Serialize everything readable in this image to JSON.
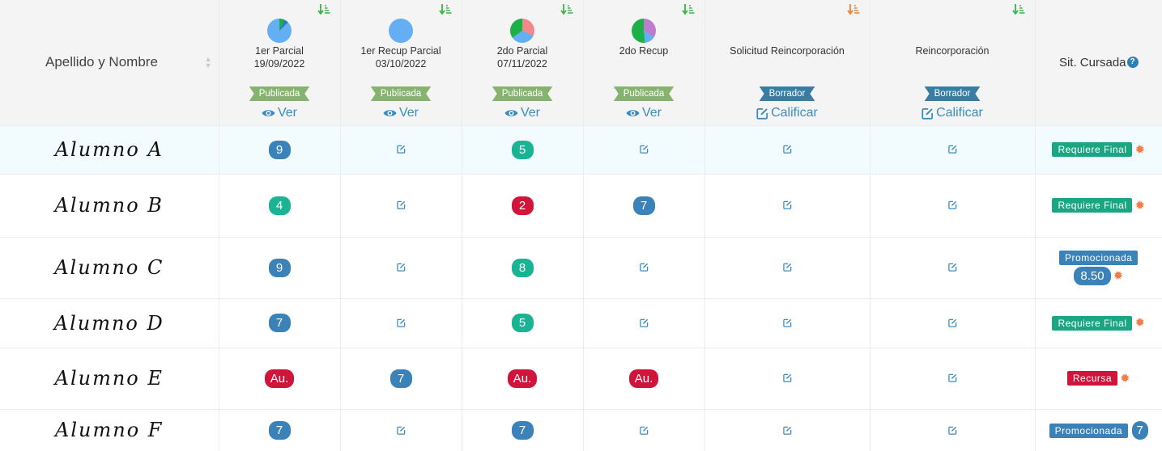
{
  "header": {
    "name_label": "Apellido y Nombre",
    "situation_label": "Sit. Cursada",
    "columns": [
      {
        "title": "1er Parcial",
        "date": "19/09/2022",
        "status": "Publicada",
        "action": "Ver"
      },
      {
        "title": "1er Recup Parcial",
        "date": "03/10/2022",
        "status": "Publicada",
        "action": "Ver"
      },
      {
        "title": "2do Parcial",
        "date": "07/11/2022",
        "status": "Publicada",
        "action": "Ver"
      },
      {
        "title": "2do Recup",
        "date": "",
        "status": "Publicada",
        "action": "Ver"
      },
      {
        "title": "Solicitud Reincorporación",
        "date": "",
        "status": "Borrador",
        "action": "Calificar"
      },
      {
        "title": "Reincorporación",
        "date": "",
        "status": "Borrador",
        "action": "Calificar"
      }
    ]
  },
  "colors": {
    "published": "#86b46f",
    "draft": "#3b7ca4",
    "link": "#3a8cbf",
    "grade_blue": "#3b82b9",
    "grade_green": "#1ab394",
    "grade_red": "#d0143a",
    "gear": "#f07c4a"
  },
  "students": [
    {
      "name": "Alumno A",
      "grades": [
        "9",
        "",
        "5",
        "",
        "",
        ""
      ],
      "situation": "Requiere Final",
      "final_grade": ""
    },
    {
      "name": "Alumno B",
      "grades": [
        "4",
        "",
        "2",
        "7",
        "",
        ""
      ],
      "situation": "Requiere Final",
      "final_grade": ""
    },
    {
      "name": "Alumno C",
      "grades": [
        "9",
        "",
        "8",
        "",
        "",
        ""
      ],
      "situation": "Promocionada",
      "final_grade": "8.50"
    },
    {
      "name": "Alumno D",
      "grades": [
        "7",
        "",
        "5",
        "",
        "",
        ""
      ],
      "situation": "Requiere Final",
      "final_grade": ""
    },
    {
      "name": "Alumno E",
      "grades": [
        "Au.",
        "7",
        "Au.",
        "Au.",
        "",
        ""
      ],
      "situation": "Recursa",
      "final_grade": ""
    },
    {
      "name": "Alumno F",
      "grades": [
        "7",
        "",
        "7",
        "",
        "",
        ""
      ],
      "situation": "Promocionada",
      "final_grade": "7"
    }
  ]
}
